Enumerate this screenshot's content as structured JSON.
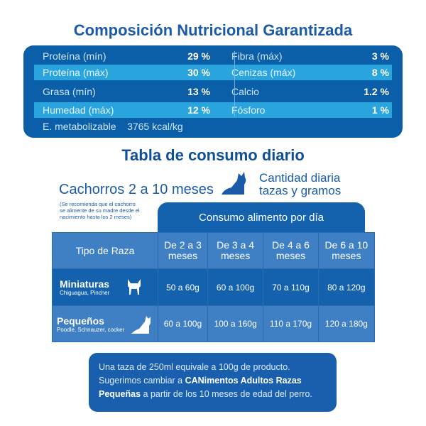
{
  "composition": {
    "title": "Composición Nutricional Garantizada",
    "left": [
      {
        "label": "Proteína (mín)",
        "value": "29 %"
      },
      {
        "label": "Proteína (máx)",
        "value": "30 %"
      },
      {
        "label": "Grasa (mín)",
        "value": "13 %"
      },
      {
        "label": "Humedad (máx)",
        "value": "12 %"
      }
    ],
    "right": [
      {
        "label": "Fibra (máx)",
        "value": "3 %"
      },
      {
        "label": "Cenizas (máx)",
        "value": "8 %"
      },
      {
        "label": "Calcio",
        "value": "1.2 %"
      },
      {
        "label": "Fósforo",
        "value": "1 %"
      }
    ],
    "energy_label": "E. metabolizable",
    "energy_value": "3765 kcal/kg"
  },
  "consumption": {
    "title": "Tabla de consumo diario",
    "subtitle": "Cachorros 2 a 10 meses",
    "quantity_line1": "Cantidad diaria",
    "quantity_line2": "tazas y gramos",
    "note_lines": [
      "(Se recomienda que el cachorro",
      "se alimente de su madre desde el",
      "nacimiento hasta los 2 meses)"
    ],
    "tab_label": "Consumo alimento por día",
    "header_breed": "Tipo de Raza",
    "columns": [
      [
        "De 2 a 3",
        "meses"
      ],
      [
        "De 3 a 4",
        "meses"
      ],
      [
        "De 4 a 6",
        "meses"
      ],
      [
        "De 6 a 10",
        "meses"
      ]
    ],
    "rows": [
      {
        "name": "Miniaturas",
        "examples": "Chiguagua, Pincher",
        "icon": "chihuahua-icon",
        "values": [
          "50 a 60g",
          "60 a 100g",
          "70 a 110g",
          "80 a 120g"
        ]
      },
      {
        "name": "Pequeños",
        "examples": "Poodle, Schnauzer, cocker",
        "icon": "small-dog-icon",
        "values": [
          "60 a 100g",
          "100 a 160g",
          "110 a 170g",
          "120 a 180g"
        ]
      }
    ]
  },
  "footer": {
    "line1": "Una taza de 250ml equivale a 100g de producto.",
    "line2a": "Sugerimos cambiar a ",
    "line2b": "CANimentos Adultos Razas",
    "line3a": "Pequeñas",
    "line3b": " a partir de los 10 meses de edad del perro."
  },
  "colors": {
    "title": "#1a5aa6",
    "panel": "#0b5ea8",
    "light_row": "#2aa4dd",
    "table_dark": "#1461ad",
    "table_light": "#3f7fc4"
  }
}
